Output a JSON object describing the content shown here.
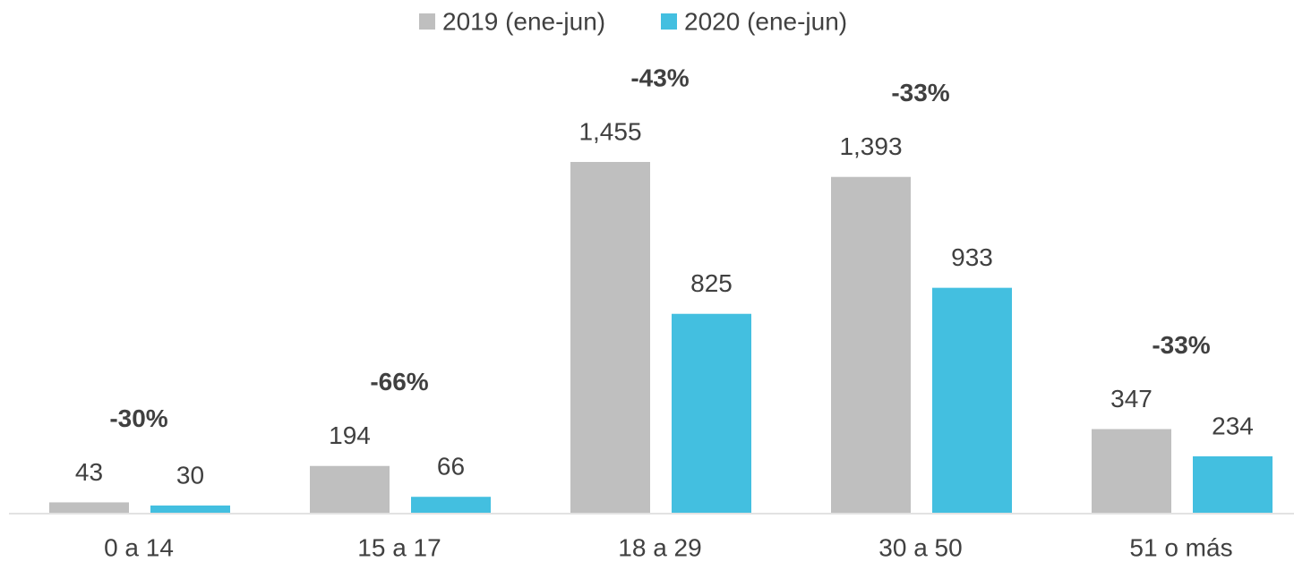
{
  "chart_data": {
    "type": "bar",
    "categories": [
      "0 a 14",
      "15 a 17",
      "18 a 29",
      "30 a 50",
      "51 o más"
    ],
    "series": [
      {
        "name": "2019 (ene-jun)",
        "color": "#bfbfbf",
        "values": [
          43,
          194,
          1455,
          1393,
          347
        ],
        "value_labels": [
          "43",
          "194",
          "1,455",
          "1,393",
          "347"
        ]
      },
      {
        "name": "2020 (ene-jun)",
        "color": "#43bfe0",
        "values": [
          30,
          66,
          825,
          933,
          234
        ],
        "value_labels": [
          "30",
          "66",
          "825",
          "933",
          "234"
        ]
      }
    ],
    "annotations": [
      "-30%",
      "-66%",
      "-43%",
      "-33%",
      "-33%"
    ],
    "legend": "top"
  }
}
